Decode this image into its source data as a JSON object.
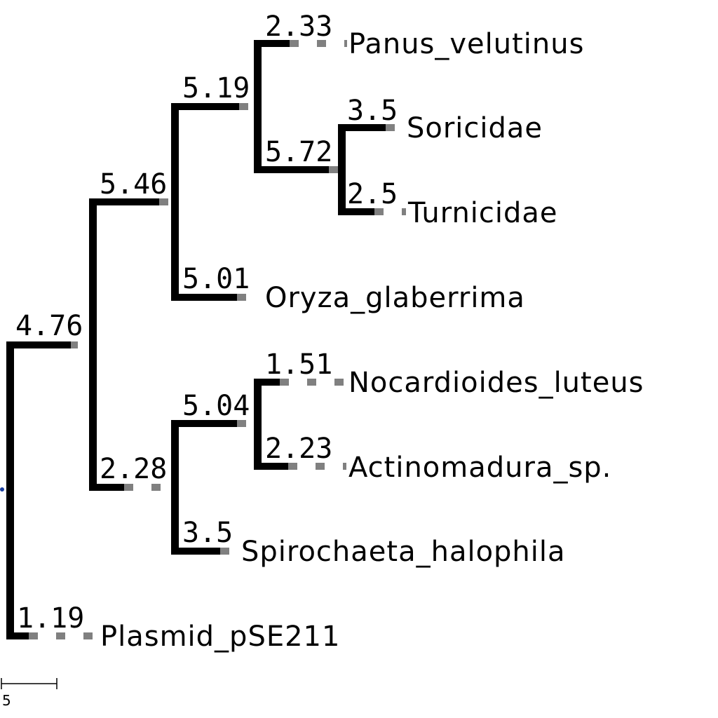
{
  "tree": {
    "branch_lengths": {
      "root_upper": "4.76",
      "upper_inner": "5.46",
      "top_clade": "5.19",
      "panus": "2.33",
      "soric_turn_clade": "5.72",
      "soricidae": "3.5",
      "turnicidae": "2.5",
      "oryza": "5.01",
      "lower_inner": "2.28",
      "actino_clade": "5.04",
      "nocardioides": "1.51",
      "actinomadura": "2.23",
      "spirochaeta": "3.5",
      "plasmid": "1.19"
    },
    "leaves": {
      "panus": "Panus_velutinus",
      "soricidae": "Soricidae",
      "turnicidae": "Turnicidae",
      "oryza": "Oryza_glaberrima",
      "nocardioides": "Nocardioides_luteus",
      "actinomadura": "Actinomadura_sp.",
      "spirochaeta": "Spirochaeta_halophila",
      "plasmid": "Plasmid_pSE211"
    },
    "scale_bar": {
      "label": "5"
    },
    "colors": {
      "branch": "#000000",
      "extension": "#808080",
      "root_marker": "#1a3fa0"
    }
  }
}
